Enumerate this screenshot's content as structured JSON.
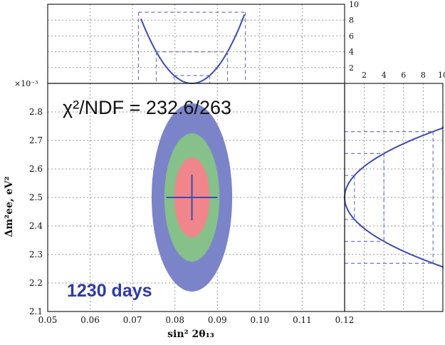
{
  "chart_data": [
    {
      "type": "contour",
      "xlabel": "sin² 2θ₁₃",
      "ylabel": "Δm²ee, eV²",
      "y_multiplier": "×10⁻³",
      "xlim": [
        0.05,
        0.12
      ],
      "ylim": [
        2.1,
        2.9
      ],
      "x_ticks": [
        0.05,
        0.06,
        0.07,
        0.08,
        0.09,
        0.1,
        0.11,
        0.12
      ],
      "x_tick_labels": [
        "0.05",
        "0.06",
        "0.07",
        "0.08",
        "0.09",
        "0.10",
        "0.11",
        "0.12"
      ],
      "y_ticks": [
        2.1,
        2.2,
        2.3,
        2.4,
        2.5,
        2.6,
        2.7,
        2.8
      ],
      "y_tick_labels": [
        "2.1",
        "2.2",
        "2.3",
        "2.4",
        "2.5",
        "2.6",
        "2.7",
        "2.8"
      ],
      "best_fit": {
        "x": 0.084,
        "y": 2.5,
        "x_err": 0.006,
        "y_err": 0.08
      },
      "contours": [
        {
          "cx": 0.084,
          "cy": 2.5,
          "rx": 0.0095,
          "ry": 0.33,
          "color": "#7b84c9"
        },
        {
          "cx": 0.084,
          "cy": 2.5,
          "rx": 0.0065,
          "ry": 0.225,
          "color": "#86c08a"
        },
        {
          "cx": 0.084,
          "cy": 2.5,
          "rx": 0.0042,
          "ry": 0.14,
          "color": "#f0868c"
        }
      ],
      "grid": true
    },
    {
      "type": "line",
      "panel": "top-projection",
      "xlim": [
        0.05,
        0.12
      ],
      "ylim": [
        0,
        10
      ],
      "y_ticks": [
        2,
        4,
        6,
        8,
        10
      ],
      "y_tick_labels": [
        "2",
        "4",
        "6",
        "8",
        "10"
      ],
      "curve": {
        "vertex_x": 0.084,
        "sigma": 0.0042
      },
      "levels": [
        1,
        4,
        9
      ],
      "line_color": "#3f4bab"
    },
    {
      "type": "line",
      "panel": "right-projection",
      "ylim": [
        2.1,
        2.9
      ],
      "xlim": [
        0,
        10
      ],
      "x_ticks": [
        2,
        4,
        6,
        8,
        10
      ],
      "x_tick_labels": [
        "2",
        "4",
        "6",
        "8",
        "10"
      ],
      "curve": {
        "vertex_y": 2.5,
        "sigma": 0.077
      },
      "levels": [
        1,
        4,
        9
      ],
      "line_color": "#3f4bab"
    }
  ],
  "annotation": "χ²/NDF = 232.6/263",
  "badge": "1230 days",
  "colors": {
    "curve": "#3f4bab",
    "badge": "#2f3aa3",
    "grid": "#9a9a9a"
  }
}
